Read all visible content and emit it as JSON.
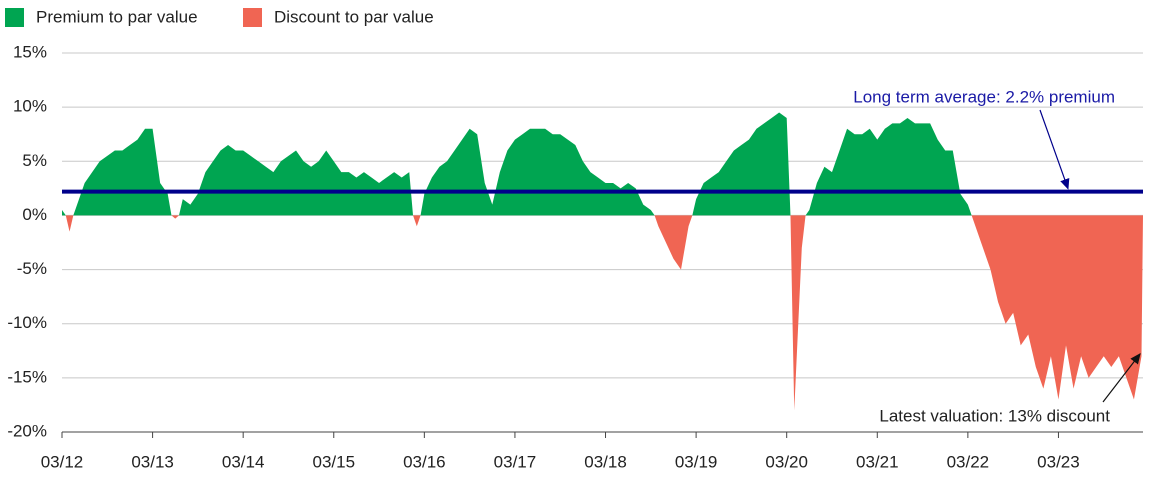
{
  "chart_data": {
    "type": "area",
    "x": [
      "03/12",
      "04/12",
      "05/12",
      "06/12",
      "07/12",
      "08/12",
      "09/12",
      "10/12",
      "11/12",
      "12/12",
      "01/13",
      "02/13",
      "03/13",
      "04/13",
      "05/13",
      "06/13",
      "07/13",
      "08/13",
      "09/13",
      "10/13",
      "11/13",
      "12/13",
      "01/14",
      "02/14",
      "03/14",
      "04/14",
      "05/14",
      "06/14",
      "07/14",
      "08/14",
      "09/14",
      "10/14",
      "11/14",
      "12/14",
      "01/15",
      "02/15",
      "03/15",
      "04/15",
      "05/15",
      "06/15",
      "07/15",
      "08/15",
      "09/15",
      "10/15",
      "11/15",
      "12/15",
      "01/16",
      "02/16",
      "03/16",
      "04/16",
      "05/16",
      "06/16",
      "07/16",
      "08/16",
      "09/16",
      "10/16",
      "11/16",
      "12/16",
      "01/17",
      "02/17",
      "03/17",
      "04/17",
      "05/17",
      "06/17",
      "07/17",
      "08/17",
      "09/17",
      "10/17",
      "11/17",
      "12/17",
      "01/18",
      "02/18",
      "03/18",
      "04/18",
      "05/18",
      "06/18",
      "07/18",
      "08/18",
      "09/18",
      "10/18",
      "11/18",
      "12/18",
      "01/19",
      "02/19",
      "03/19",
      "04/19",
      "05/19",
      "06/19",
      "07/19",
      "08/19",
      "09/19",
      "10/19",
      "11/19",
      "12/19",
      "01/20",
      "02/20",
      "03/20",
      "04/20",
      "05/20",
      "06/20",
      "07/20",
      "08/20",
      "09/20",
      "10/20",
      "11/20",
      "12/20",
      "01/21",
      "02/21",
      "03/21",
      "04/21",
      "05/21",
      "06/21",
      "07/21",
      "08/21",
      "09/21",
      "10/21",
      "11/21",
      "12/21",
      "01/22",
      "02/22",
      "03/22",
      "04/22",
      "05/22",
      "06/22",
      "07/22",
      "08/22",
      "09/22",
      "10/22",
      "11/22",
      "12/22",
      "01/23",
      "02/23",
      "03/23",
      "04/23",
      "05/23",
      "06/23",
      "07/23",
      "08/23",
      "09/23",
      "10/23",
      "11/23",
      "12/23",
      "01/24",
      "02/24"
    ],
    "series": [
      {
        "name": "Premium to par value",
        "color": "#00a551",
        "values": [
          0.5,
          null,
          1,
          3,
          4,
          5,
          5.5,
          6,
          6,
          6.5,
          7,
          8,
          8,
          3,
          2,
          null,
          1.5,
          1,
          2,
          4,
          5,
          6,
          6.5,
          6,
          6,
          5.5,
          5,
          4.5,
          4,
          5,
          5.5,
          6,
          5,
          4.5,
          5,
          6,
          5,
          4,
          4,
          3.5,
          4,
          3.5,
          3,
          3.5,
          4,
          3.5,
          4,
          null,
          2,
          3.5,
          4.5,
          5,
          6,
          7,
          8,
          7.5,
          3,
          1,
          4,
          6,
          7,
          7.5,
          8,
          8,
          8,
          7.5,
          7.5,
          7,
          6.5,
          5,
          4,
          3.5,
          3,
          3,
          2.5,
          3,
          2.5,
          1,
          0.5,
          null,
          null,
          null,
          null,
          null,
          1.5,
          3,
          3.5,
          4,
          5,
          6,
          6.5,
          7,
          8,
          8.5,
          9,
          9.5,
          9,
          null,
          null,
          0.5,
          3,
          4.5,
          4,
          6,
          8,
          7.5,
          7.5,
          8,
          7,
          8,
          8.5,
          8.5,
          9,
          8.5,
          8.5,
          8.5,
          7,
          6,
          6,
          2,
          1,
          null,
          null,
          null,
          null,
          null,
          null,
          null,
          null,
          null,
          null,
          null,
          null,
          null,
          null,
          null,
          null,
          null,
          null,
          null,
          null,
          null,
          null,
          null
        ]
      },
      {
        "name": "Discount to par value",
        "color": "#f06553",
        "values": [
          null,
          -1.5,
          null,
          null,
          null,
          null,
          null,
          null,
          null,
          null,
          null,
          null,
          null,
          null,
          null,
          -0.3,
          null,
          null,
          null,
          null,
          null,
          null,
          null,
          null,
          null,
          null,
          null,
          null,
          null,
          null,
          null,
          null,
          null,
          null,
          null,
          null,
          null,
          null,
          null,
          null,
          null,
          null,
          null,
          null,
          null,
          null,
          null,
          -1,
          null,
          null,
          null,
          null,
          null,
          null,
          null,
          null,
          null,
          null,
          null,
          null,
          null,
          null,
          null,
          null,
          null,
          null,
          null,
          null,
          null,
          null,
          null,
          null,
          null,
          null,
          null,
          null,
          null,
          null,
          null,
          -1,
          -2.5,
          -4,
          -5,
          -1,
          null,
          null,
          null,
          null,
          null,
          null,
          null,
          null,
          null,
          null,
          null,
          null,
          null,
          -18,
          -3,
          null,
          null,
          null,
          null,
          null,
          null,
          null,
          null,
          null,
          null,
          null,
          null,
          null,
          null,
          null,
          null,
          null,
          null,
          null,
          null,
          null,
          null,
          -1,
          -3,
          -5,
          -8,
          -10,
          -9,
          -12,
          -11,
          -14,
          -16,
          -13,
          -17,
          -12,
          -16,
          -13,
          -15,
          -14,
          -13,
          -14,
          -13,
          -15,
          -17,
          -13
        ]
      }
    ],
    "ylim": [
      -20,
      15
    ],
    "yticks": [
      {
        "value": -20,
        "label": "-20%"
      },
      {
        "value": -15,
        "label": "-15%"
      },
      {
        "value": -10,
        "label": "-10%"
      },
      {
        "value": -5,
        "label": "-5%"
      },
      {
        "value": 0,
        "label": "0%"
      },
      {
        "value": 5,
        "label": "5%"
      },
      {
        "value": 10,
        "label": "10%"
      },
      {
        "value": 15,
        "label": "15%"
      }
    ],
    "grid": true,
    "average_line": {
      "value": 2.2,
      "label": "Long term average: 2.2% premium",
      "color": "#00008b"
    },
    "latest_annotation": "Latest valuation: 13% discount"
  }
}
